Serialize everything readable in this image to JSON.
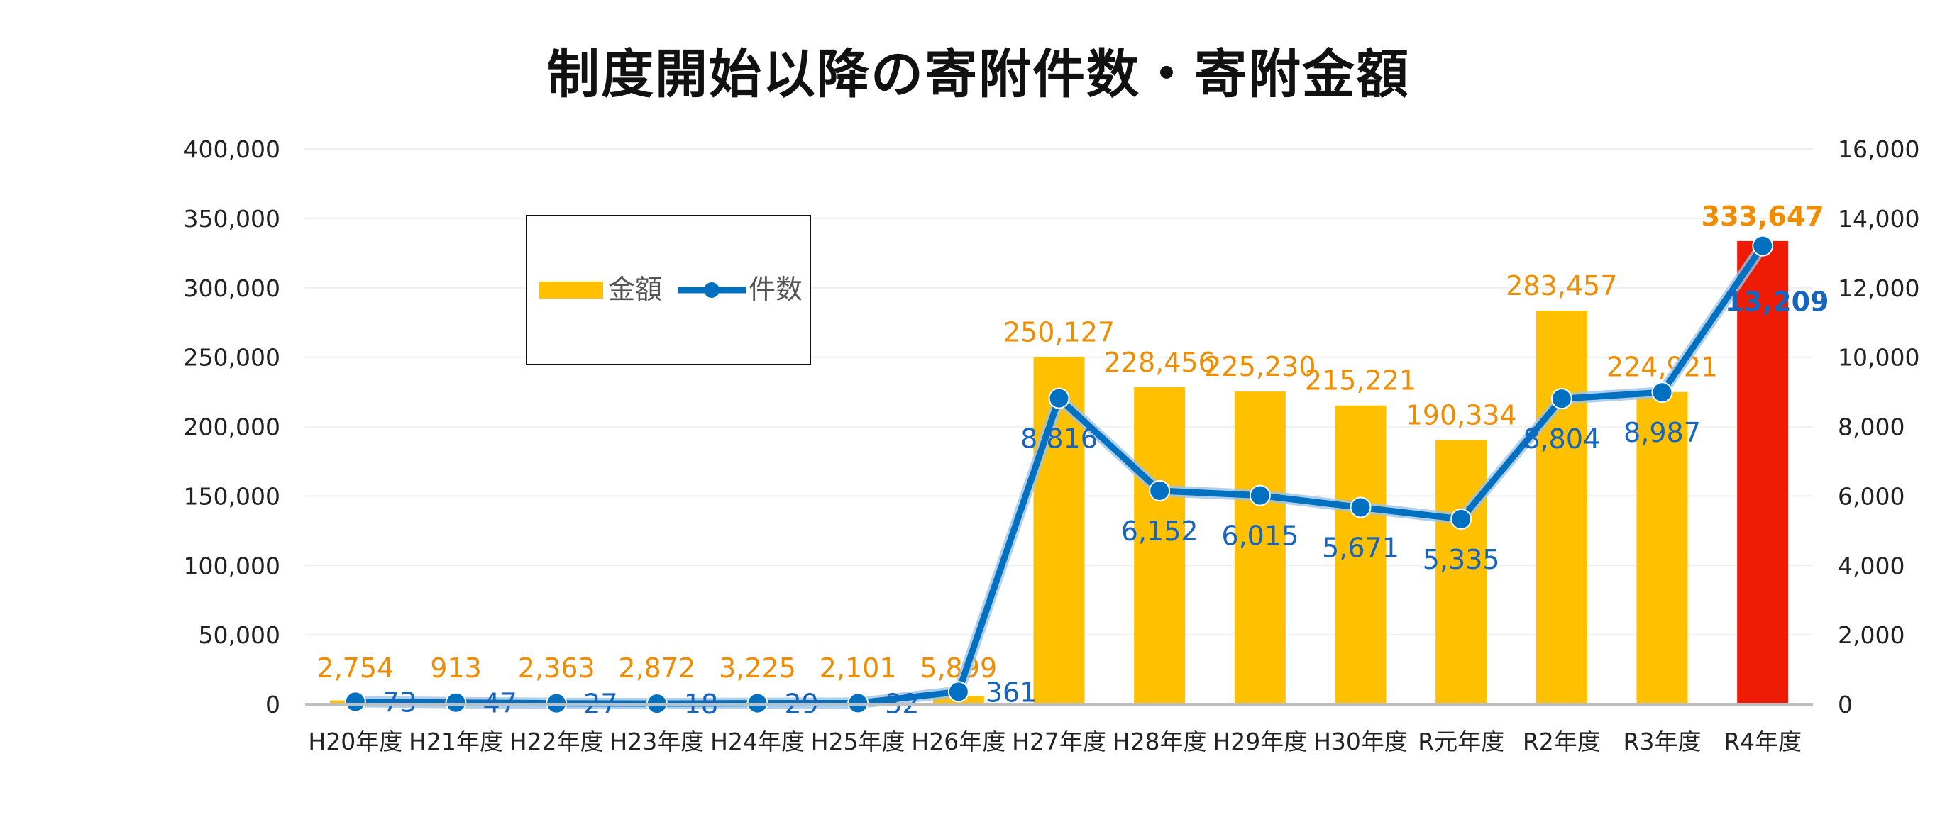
{
  "chart_data": {
    "type": "bar",
    "title": "制度開始以降の寄附件数・寄附金額",
    "categories": [
      "H20年度",
      "H21年度",
      "H22年度",
      "H23年度",
      "H24年度",
      "H25年度",
      "H26年度",
      "H27年度",
      "H28年度",
      "H29年度",
      "H30年度",
      "R元年度",
      "R2年度",
      "R3年度",
      "R4年度"
    ],
    "series": [
      {
        "name": "金額",
        "type": "bar",
        "axis": "left",
        "values": [
          2754,
          913,
          2363,
          2872,
          3225,
          2101,
          5899,
          250127,
          228456,
          225230,
          215221,
          190334,
          283457,
          224921,
          333647
        ],
        "labels": [
          "2,754",
          "913",
          "2,363",
          "2,872",
          "3,225",
          "2,101",
          "5,899",
          "250,127",
          "228,456",
          "225,230",
          "215,221",
          "190,334",
          "283,457",
          "224,921",
          "333,647"
        ],
        "color": "#ffc000",
        "highlight_color": "#ee1c05"
      },
      {
        "name": "件数",
        "type": "line",
        "axis": "right",
        "values": [
          73,
          47,
          27,
          18,
          29,
          32,
          361,
          8816,
          6152,
          6015,
          5671,
          5335,
          8804,
          8987,
          13209
        ],
        "labels": [
          "73",
          "47",
          "27",
          "18",
          "29",
          "32",
          "361",
          "8,816",
          "6,152",
          "6,015",
          "5,671",
          "5,335",
          "8,804",
          "8,987",
          "13,209"
        ],
        "color": "#0070c0"
      }
    ],
    "y_left": {
      "min": 0,
      "max": 400000,
      "ticks": [
        "0",
        "50,000",
        "100,000",
        "150,000",
        "200,000",
        "250,000",
        "300,000",
        "350,000",
        "400,000"
      ]
    },
    "y_right": {
      "min": 0,
      "max": 16000,
      "ticks": [
        "0",
        "2,000",
        "4,000",
        "6,000",
        "8,000",
        "10,000",
        "12,000",
        "14,000",
        "16,000"
      ]
    },
    "grid": true,
    "legend_position": "top-left"
  }
}
